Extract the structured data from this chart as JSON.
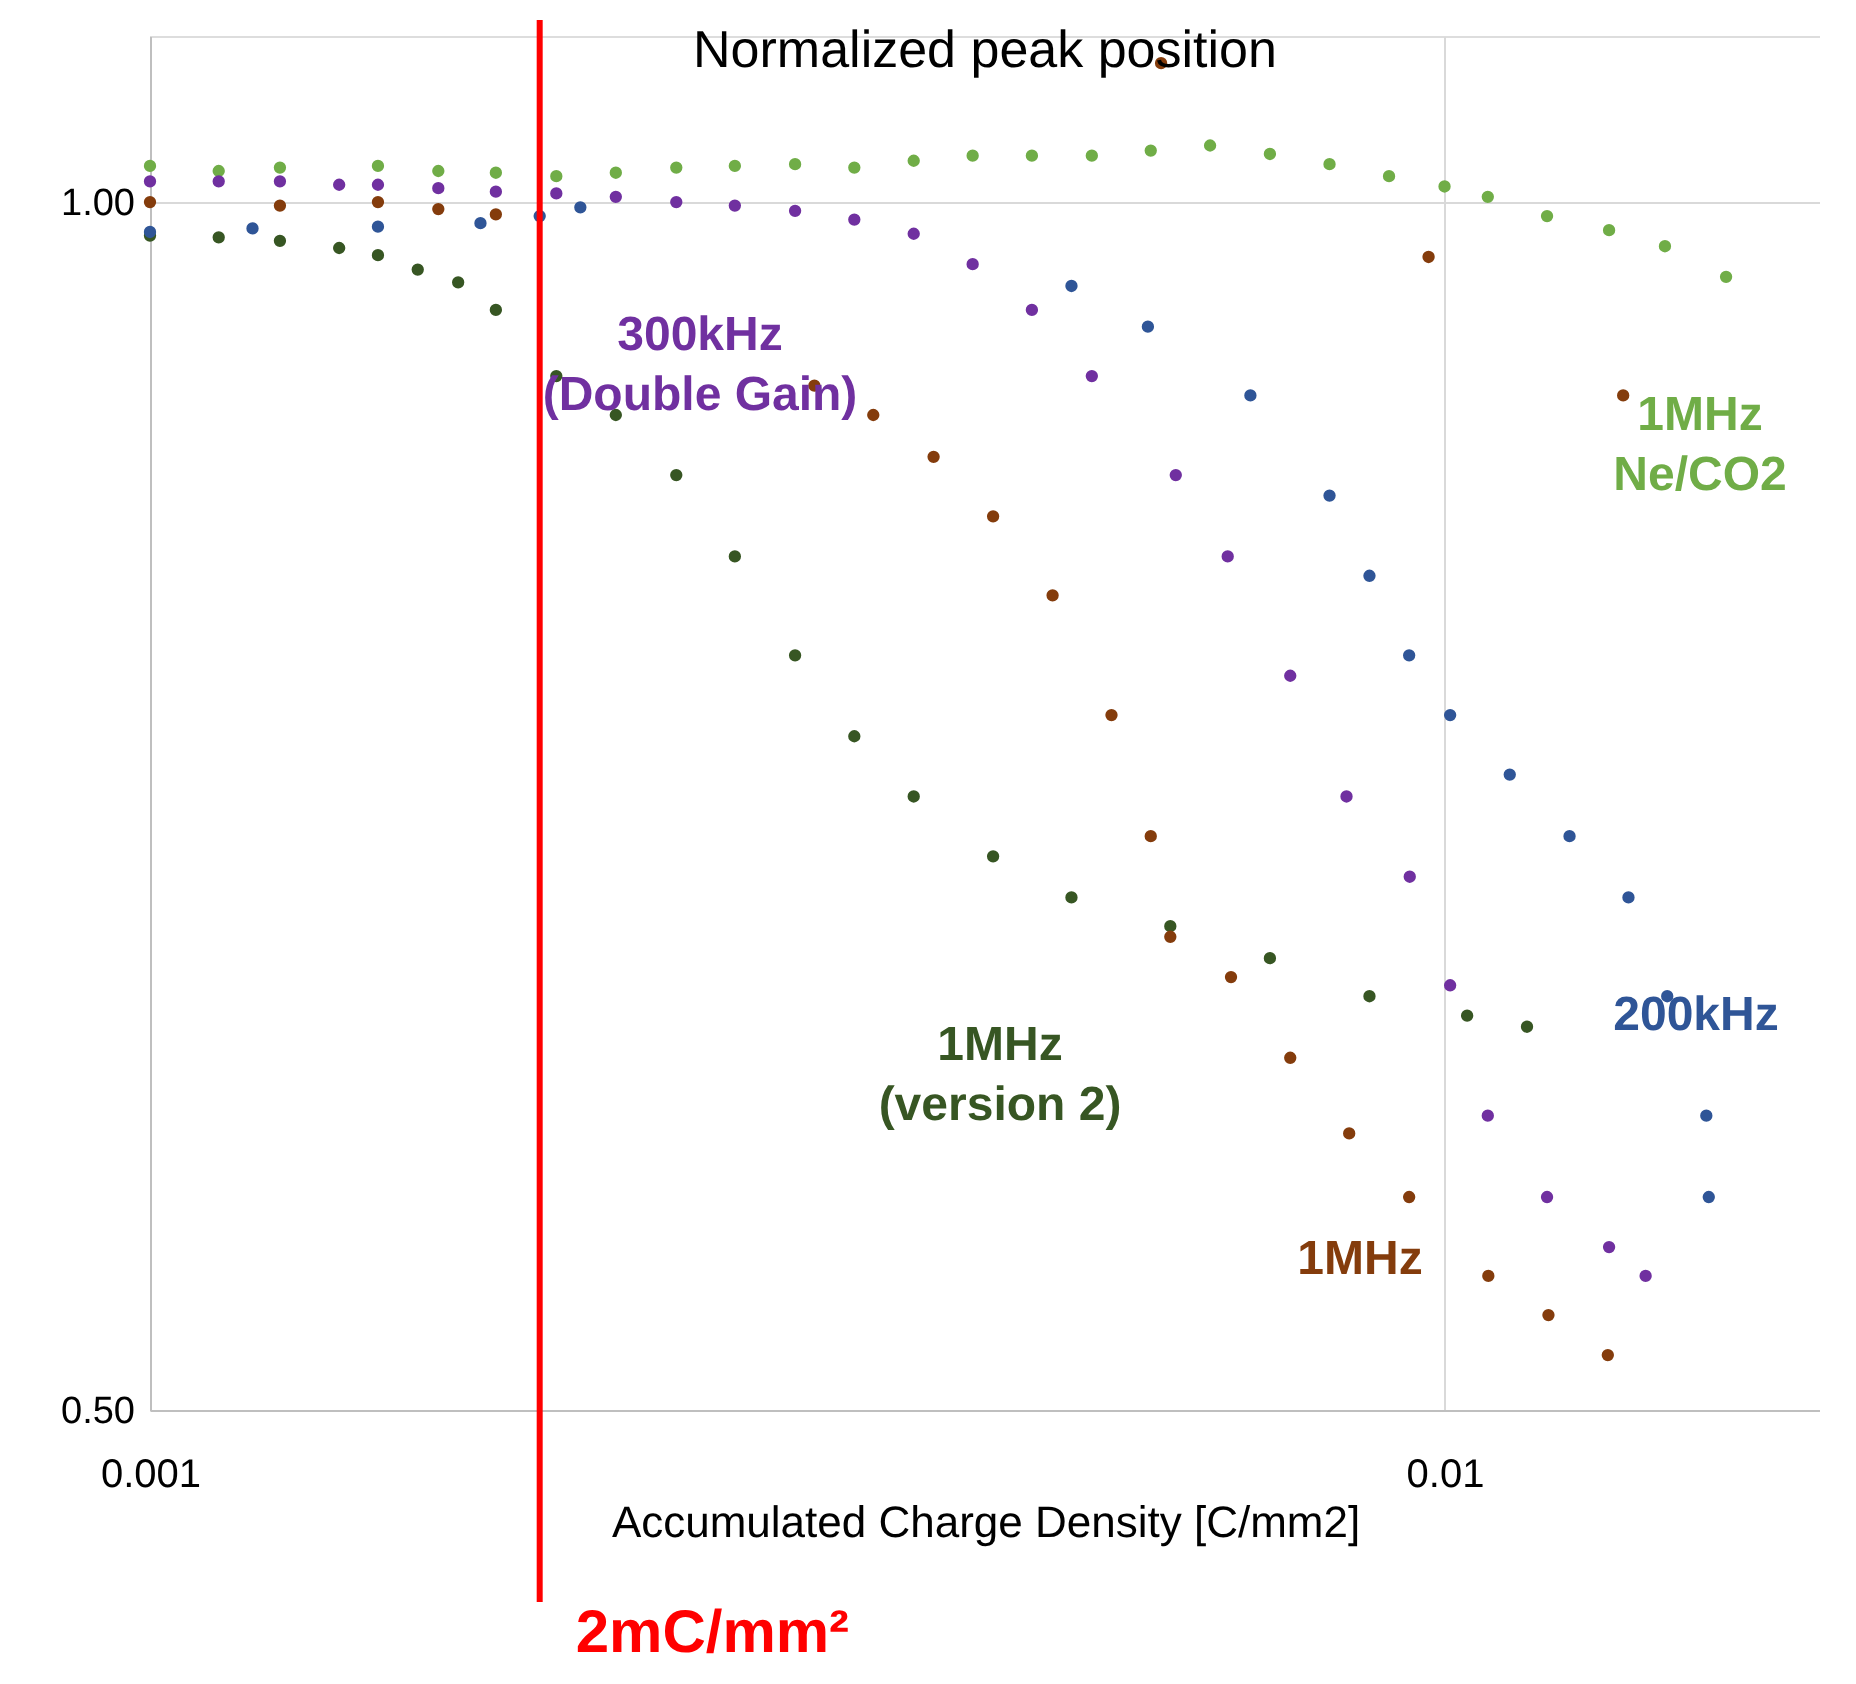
{
  "chart_data": {
    "type": "scatter",
    "title": "Normalized peak position",
    "xlabel": "Accumulated Charge Density [C/mm2]",
    "log": "xy",
    "xlim": [
      0.001,
      0.0195
    ],
    "ylim": [
      0.5,
      1.1
    ],
    "xticks": [
      {
        "value": 0.001,
        "label": "0.001"
      },
      {
        "value": 0.01,
        "label": "0.01"
      }
    ],
    "yticks": [
      {
        "value": 0.5,
        "label": "0.50"
      },
      {
        "value": 1.0,
        "label": "1.00"
      }
    ],
    "grid": true,
    "marker": "circle",
    "ref_lines": [
      {
        "axis": "x",
        "value": 0.002,
        "label": "2mC/mm²",
        "color": "#ff0000"
      }
    ],
    "series": [
      {
        "name": "1MHz Ne/CO2",
        "color": "#70ad47",
        "x": [
          0.001,
          0.00113,
          0.00126,
          0.0015,
          0.00167,
          0.00185,
          0.00206,
          0.00229,
          0.00255,
          0.00283,
          0.00315,
          0.0035,
          0.00389,
          0.00432,
          0.0048,
          0.00534,
          0.00593,
          0.00659,
          0.00733,
          0.00815,
          0.00906,
          0.01,
          0.0108,
          0.012,
          0.0134,
          0.0148,
          0.0165
        ],
        "values": [
          1.021,
          1.018,
          1.02,
          1.021,
          1.018,
          1.017,
          1.015,
          1.017,
          1.02,
          1.021,
          1.022,
          1.02,
          1.024,
          1.027,
          1.027,
          1.027,
          1.03,
          1.033,
          1.028,
          1.022,
          1.015,
          1.009,
          1.003,
          0.992,
          0.984,
          0.975,
          0.958
        ]
      },
      {
        "name": "1MHz (version 2)",
        "color": "#375623",
        "x": [
          0.001,
          0.00113,
          0.00126,
          0.0014,
          0.0015,
          0.00161,
          0.00173,
          0.00185,
          0.00206,
          0.00229,
          0.00255,
          0.00283,
          0.00315,
          0.0035,
          0.00389,
          0.00448,
          0.00515,
          0.00614,
          0.00733,
          0.00875,
          0.01041,
          0.01158
        ],
        "values": [
          0.981,
          0.98,
          0.978,
          0.974,
          0.97,
          0.962,
          0.955,
          0.94,
          0.905,
          0.885,
          0.855,
          0.816,
          0.771,
          0.736,
          0.711,
          0.687,
          0.671,
          0.66,
          0.648,
          0.634,
          0.627,
          0.623
        ]
      },
      {
        "name": "1MHz",
        "color": "#843c0c",
        "x": [
          0.001,
          0.00126,
          0.0015,
          0.00167,
          0.00185,
          0.00326,
          0.00362,
          0.00403,
          0.00448,
          0.00498,
          0.00553,
          0.00593,
          0.00604,
          0.00614,
          0.00684,
          0.0076,
          0.00844,
          0.00939,
          0.00972,
          0.01081,
          0.01203,
          0.01337,
          0.01374
        ],
        "values": [
          1.0,
          0.998,
          1.0,
          0.996,
          0.993,
          0.9,
          0.885,
          0.864,
          0.835,
          0.798,
          0.745,
          0.695,
          1.083,
          0.656,
          0.641,
          0.612,
          0.586,
          0.565,
          0.969,
          0.54,
          0.528,
          0.516,
          0.895
        ]
      },
      {
        "name": "300kHz (Double Gain)",
        "color": "#7030a0",
        "x": [
          0.001,
          0.00113,
          0.00126,
          0.0014,
          0.0015,
          0.00167,
          0.00185,
          0.00206,
          0.00229,
          0.00255,
          0.00283,
          0.00315,
          0.0035,
          0.00389,
          0.00432,
          0.0048,
          0.00534,
          0.0062,
          0.0068,
          0.0076,
          0.0084,
          0.0094,
          0.0101,
          0.0108,
          0.012,
          0.0134,
          0.0143
        ],
        "values": [
          1.012,
          1.012,
          1.012,
          1.01,
          1.01,
          1.008,
          1.006,
          1.005,
          1.003,
          1.0,
          0.998,
          0.995,
          0.99,
          0.982,
          0.965,
          0.94,
          0.905,
          0.855,
          0.816,
          0.762,
          0.711,
          0.679,
          0.638,
          0.592,
          0.565,
          0.549,
          0.54
        ]
      },
      {
        "name": "200kHz",
        "color": "#2f5597",
        "x": [
          0.001,
          0.0012,
          0.0015,
          0.0018,
          0.002,
          0.00215,
          0.00515,
          0.0059,
          0.00708,
          0.00815,
          0.00875,
          0.00939,
          0.0101,
          0.01123,
          0.01249,
          0.01387,
          0.01486,
          0.01593,
          0.016
        ],
        "values": [
          0.983,
          0.985,
          0.986,
          0.988,
          0.992,
          0.997,
          0.953,
          0.931,
          0.895,
          0.845,
          0.807,
          0.771,
          0.745,
          0.72,
          0.695,
          0.671,
          0.634,
          0.592,
          0.565
        ]
      }
    ]
  }
}
